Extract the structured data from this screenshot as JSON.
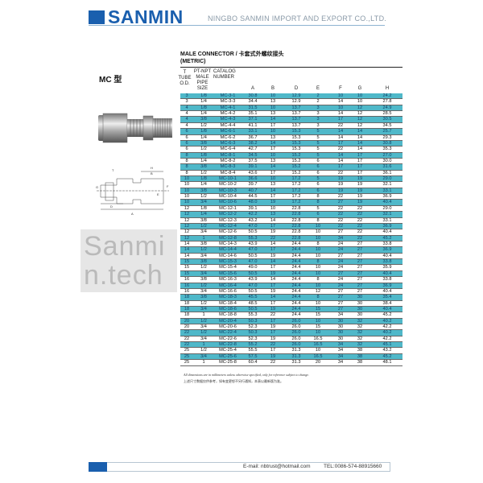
{
  "header": {
    "logo": "SANMIN",
    "company": "NINGBO SANMIN IMPORT AND EXPORT CO.,LTD.",
    "brand_color": "#1a5fae"
  },
  "product": {
    "title": "MALE CONNECTOR /  卡套式外螺纹接头",
    "subtitle": "(METRIC)",
    "model": "MC 型"
  },
  "table": {
    "headers": [
      "T\nTUBE\nO.D.",
      "PT-NPT\nMALE\nPIPE\nSIZE",
      "CATALOG\nNUMBER",
      "A",
      "B",
      "D",
      "E",
      "F",
      "G",
      "H"
    ],
    "stripe_color": "#4fb8c9",
    "rows": [
      [
        "3",
        "1/8",
        "MC-3-1",
        "30.8",
        "10",
        "12.9",
        "2",
        "10",
        "10",
        "24.2"
      ],
      [
        "3",
        "1/4",
        "MC-3-3",
        "34.4",
        "13",
        "12.9",
        "2",
        "14",
        "10",
        "27.8"
      ],
      [
        "4",
        "1/8",
        "MC-4-1",
        "31.5",
        "10",
        "13.7",
        "3",
        "10",
        "12",
        "24.9"
      ],
      [
        "4",
        "1/4",
        "MC-4-2",
        "35.1",
        "13",
        "13.7",
        "3",
        "14",
        "12",
        "28.5"
      ],
      [
        "4",
        "3/8",
        "MC-4-3",
        "37.1",
        "14",
        "13.7",
        "3",
        "17",
        "12",
        "30.5"
      ],
      [
        "4",
        "1/2",
        "MC-4-4",
        "41.1",
        "17",
        "13.7",
        "3",
        "22",
        "12",
        "34.5"
      ],
      [
        "6",
        "1/8",
        "MC-6-1",
        "33.1",
        "10",
        "15.3",
        "5",
        "14",
        "14",
        "25.7"
      ],
      [
        "6",
        "1/4",
        "MC-6-2",
        "36.7",
        "13",
        "15.3",
        "5",
        "14",
        "14",
        "29.3"
      ],
      [
        "6",
        "3/8",
        "MC-6-3",
        "38.2",
        "14",
        "15.3",
        "5",
        "17",
        "14",
        "30.8"
      ],
      [
        "6",
        "1/2",
        "MC-6-4",
        "42.7",
        "17",
        "15.3",
        "5",
        "22",
        "14",
        "35.3"
      ],
      [
        "8",
        "1/8",
        "MC-8-1",
        "34.5",
        "10",
        "15.2",
        "5",
        "14",
        "17",
        "27.0"
      ],
      [
        "8",
        "1/4",
        "MC-8-2",
        "37.5",
        "13",
        "15.2",
        "6",
        "14",
        "17",
        "30.0"
      ],
      [
        "8",
        "3/8",
        "MC-8-3",
        "39.1",
        "14",
        "15.2",
        "6",
        "17",
        "17",
        "31.6"
      ],
      [
        "8",
        "1/2",
        "MC-8-4",
        "43.6",
        "17",
        "15.2",
        "6",
        "22",
        "17",
        "36.1"
      ],
      [
        "10",
        "1/8",
        "MC-10-1",
        "36.6",
        "10",
        "17.2",
        "5",
        "19",
        "19",
        "29.0"
      ],
      [
        "10",
        "1/4",
        "MC-10-2",
        "39.7",
        "13",
        "17.2",
        "6",
        "19",
        "19",
        "32.1"
      ],
      [
        "10",
        "3/8",
        "MC-10-3",
        "40.7",
        "14",
        "17.2",
        "6",
        "19",
        "19",
        "33.1"
      ],
      [
        "10",
        "1/2",
        "MC-10-4",
        "44.5",
        "17",
        "17.2",
        "8",
        "22",
        "19",
        "36.9"
      ],
      [
        "10",
        "3/4",
        "MC-10-6",
        "48.0",
        "19",
        "17.2",
        "8",
        "27",
        "19",
        "40.4"
      ],
      [
        "12",
        "1/8",
        "MC-12-1",
        "39.1",
        "10",
        "22.8",
        "5",
        "22",
        "22",
        "29.0"
      ],
      [
        "12",
        "1/4",
        "MC-12-2",
        "42.2",
        "13",
        "22.8",
        "6",
        "22",
        "22",
        "32.1"
      ],
      [
        "12",
        "3/8",
        "MC-12-3",
        "43.2",
        "14",
        "22.8",
        "8",
        "22",
        "22",
        "33.1"
      ],
      [
        "12",
        "1/2",
        "MC-12-4",
        "47.0",
        "17",
        "22.8",
        "10",
        "22",
        "22",
        "36.9"
      ],
      [
        "12",
        "3/4",
        "MC-12-6",
        "50.5",
        "19",
        "22.8",
        "10",
        "27",
        "22",
        "40.4"
      ],
      [
        "12",
        "1",
        "MC-12-8",
        "55.3",
        "22",
        "22.8",
        "10",
        "34",
        "22",
        "45.2"
      ],
      [
        "14",
        "3/8",
        "MC-14-3",
        "43.9",
        "14",
        "24.4",
        "8",
        "24",
        "27",
        "33.8"
      ],
      [
        "14",
        "1/2",
        "MC-14-4",
        "47.0",
        "17",
        "24.4",
        "10",
        "24",
        "27",
        "36.9"
      ],
      [
        "14",
        "3/4",
        "MC-14-6",
        "50.5",
        "19",
        "24.4",
        "10",
        "27",
        "27",
        "40.4"
      ],
      [
        "15",
        "3/8",
        "MC-15-3",
        "47.0",
        "14",
        "24.4",
        "8",
        "24",
        "27",
        "33.8"
      ],
      [
        "15",
        "1/2",
        "MC-15-4",
        "49.0",
        "17",
        "24.4",
        "10",
        "24",
        "27",
        "35.9"
      ],
      [
        "15",
        "3/4",
        "MC-15-6",
        "50.5",
        "19",
        "24.4",
        "10",
        "27",
        "27",
        "40.4"
      ],
      [
        "16",
        "3/8",
        "MC-16-3",
        "43.9",
        "14",
        "24.4",
        "8",
        "24",
        "27",
        "33.8"
      ],
      [
        "16",
        "1/2",
        "MC-16-4",
        "47.0",
        "17",
        "24.4",
        "10",
        "24",
        "27",
        "36.9"
      ],
      [
        "16",
        "3/4",
        "MC-16-6",
        "50.5",
        "19",
        "24.4",
        "12",
        "27",
        "27",
        "40.4"
      ],
      [
        "18",
        "3/8",
        "MC-18-3",
        "45.5",
        "14",
        "24.4",
        "8",
        "27",
        "30",
        "35.4"
      ],
      [
        "18",
        "1/2",
        "MC-18-4",
        "48.5",
        "17",
        "24.4",
        "10",
        "27",
        "30",
        "38.4"
      ],
      [
        "18",
        "3/4",
        "MC-18-6",
        "50.5",
        "19",
        "24.4",
        "15",
        "27",
        "30",
        "40.4"
      ],
      [
        "18",
        "1",
        "MC-18-8",
        "55.3",
        "22",
        "24.4",
        "15",
        "34",
        "30",
        "45.2"
      ],
      [
        "20",
        "1/2",
        "MC-20-4",
        "50.3",
        "17",
        "26.0",
        "10",
        "30",
        "32",
        "40.2"
      ],
      [
        "20",
        "3/4",
        "MC-20-6",
        "52.3",
        "19",
        "26.0",
        "15",
        "30",
        "32",
        "42.2"
      ],
      [
        "22",
        "1/2",
        "MC-22-4",
        "50.3",
        "17",
        "26.0",
        "10",
        "30",
        "32",
        "40.2"
      ],
      [
        "22",
        "3/4",
        "MC-22-6",
        "52.3",
        "19",
        "26.0",
        "16.5",
        "30",
        "32",
        "42.2"
      ],
      [
        "22",
        "1",
        "MC-22-8",
        "55.2",
        "22",
        "26.0",
        "16.5",
        "34",
        "32",
        "45.1"
      ],
      [
        "25",
        "1/2",
        "MC-25-4",
        "55.5",
        "17",
        "31.3",
        "10",
        "34",
        "38",
        "43.2"
      ],
      [
        "25",
        "3/4",
        "MC-25-6",
        "57.5",
        "19",
        "31.3",
        "16.5",
        "34",
        "38",
        "45.2"
      ],
      [
        "25",
        "1",
        "MC-25-8",
        "60.4",
        "22",
        "31.3",
        "20",
        "34",
        "38",
        "48.1"
      ]
    ]
  },
  "notes": {
    "en": "All dimensions are in millimeters unless otherwise specified, only for reference subject to change.",
    "cn": "上述尺寸数据仅供参考，如有变更恕不另行通知，本表以最新版为准。"
  },
  "drawing_labels": [
    "H",
    "B",
    "E",
    "G",
    "T",
    "D",
    "A",
    "F"
  ],
  "watermark": "Sanmin.tech",
  "footer": {
    "email": "E-mail: nbtrust@hotmail.com",
    "tel": "TEL:0086-574-88915660"
  }
}
